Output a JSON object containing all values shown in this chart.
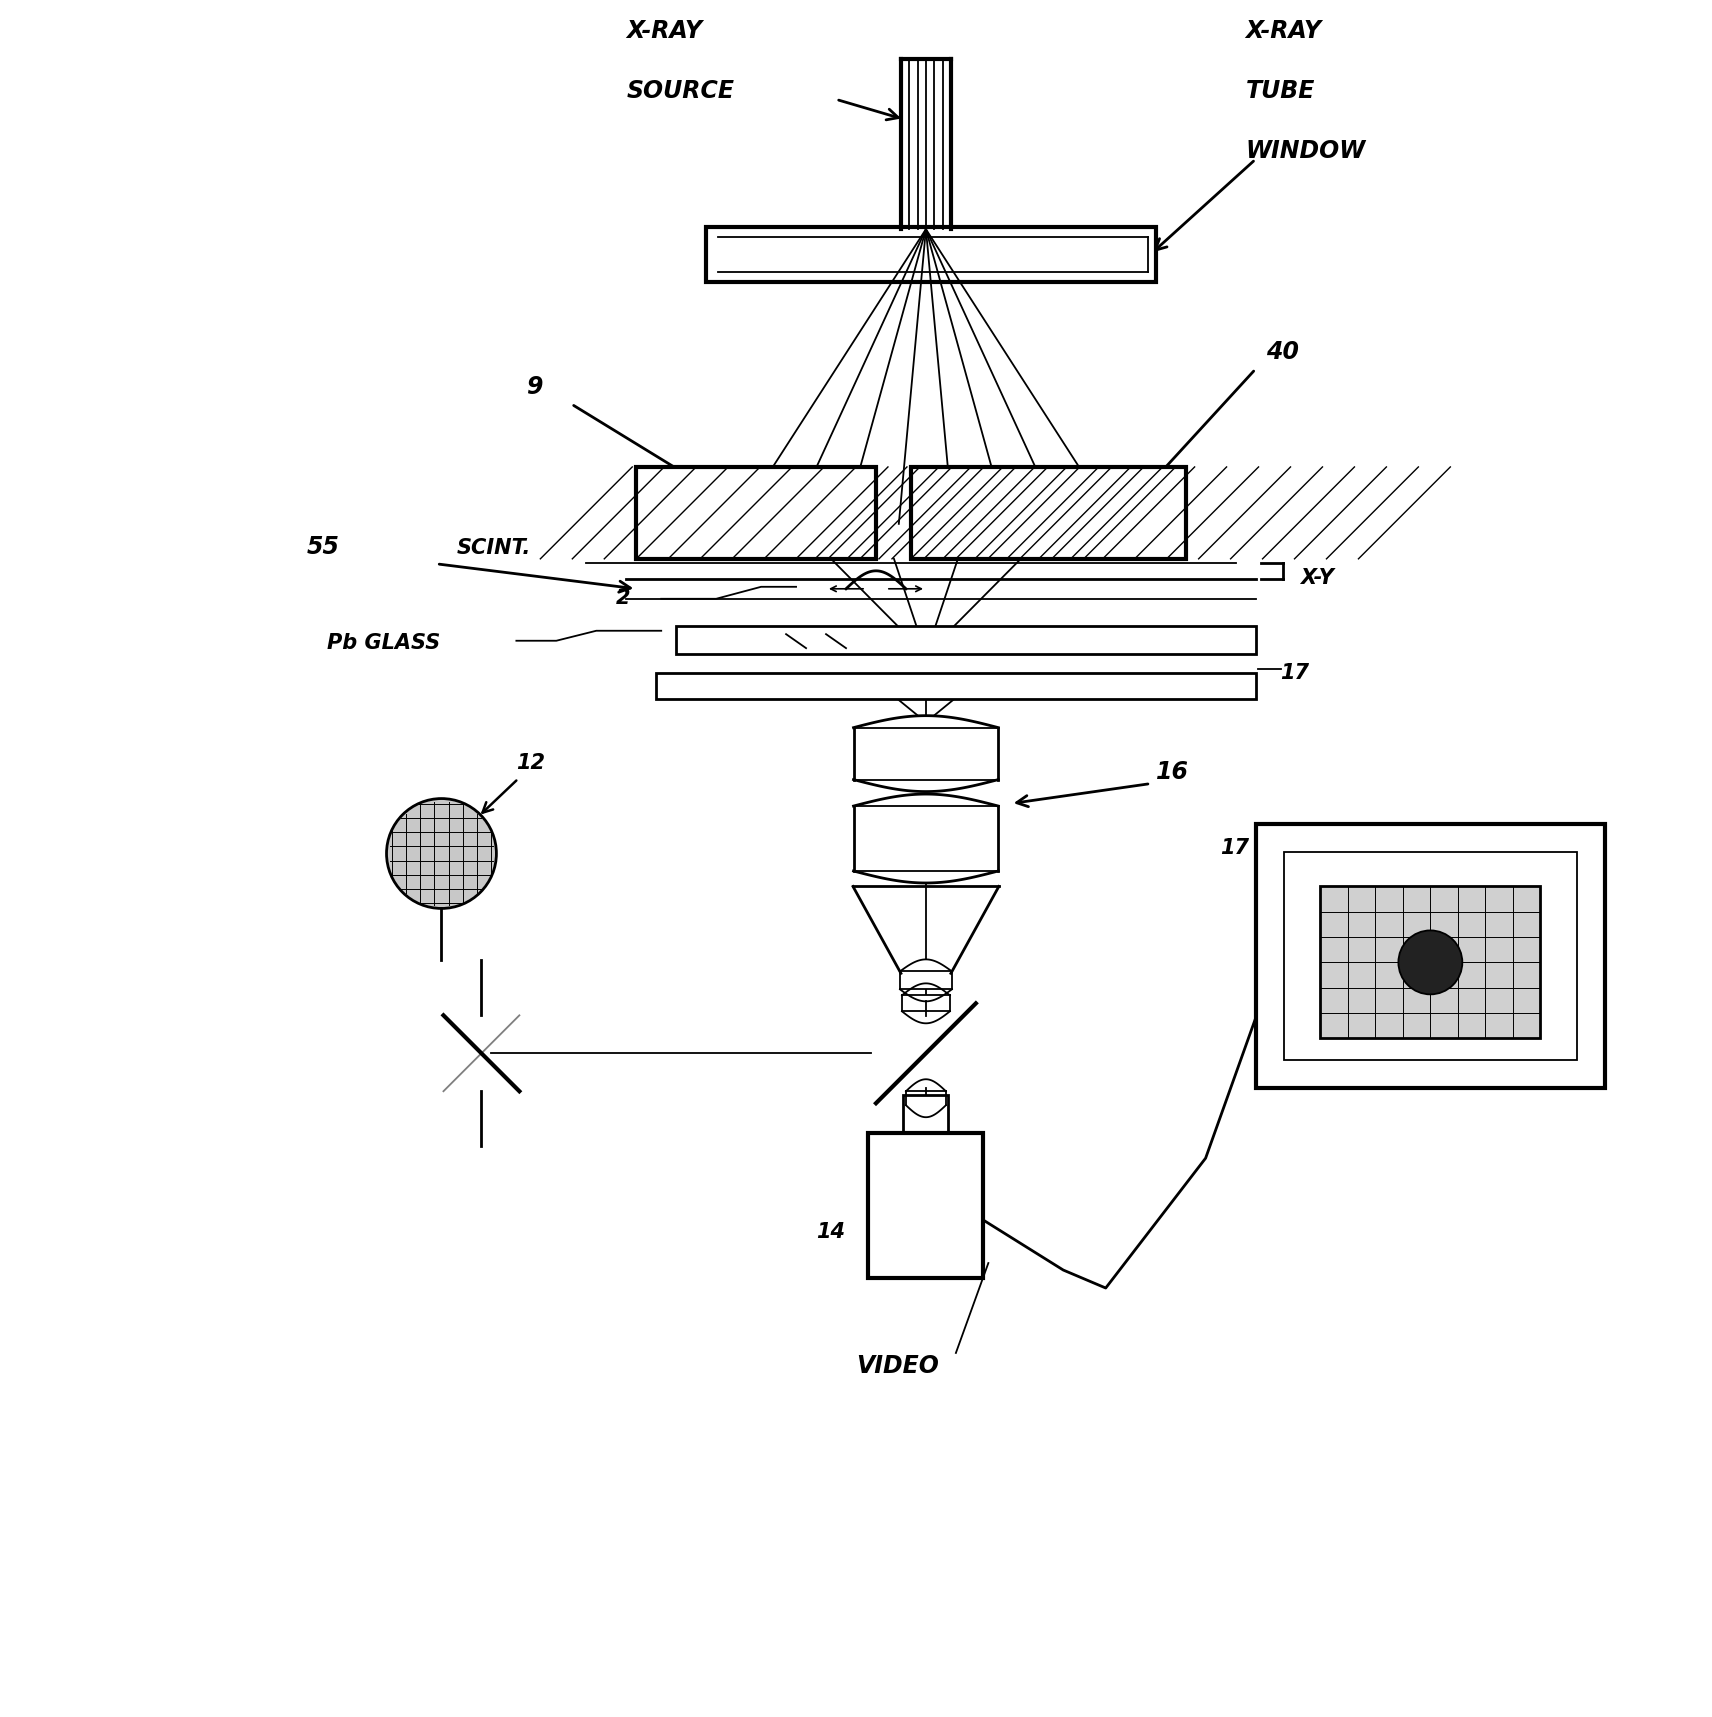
{
  "bg_color": "#ffffff",
  "line_color": "#000000",
  "fig_width": 17.12,
  "fig_height": 17.17,
  "labels": {
    "xray_source_line1": "X-RAY",
    "xray_source_line2": "SOURCE",
    "xray_tube_line1": "X-RAY",
    "xray_tube_line2": "TUBE",
    "xray_tube_line3": "WINDOW",
    "num_9": "9",
    "num_55": "55",
    "scint": "SCINT.",
    "num_2": "2",
    "pb_glass": "Pb GLASS",
    "xy": "X-Y",
    "num_40": "40",
    "num_17": "17",
    "num_12": "12",
    "num_16": "16",
    "num_14": "14",
    "num_17b": "17",
    "video": "VIDEO"
  }
}
